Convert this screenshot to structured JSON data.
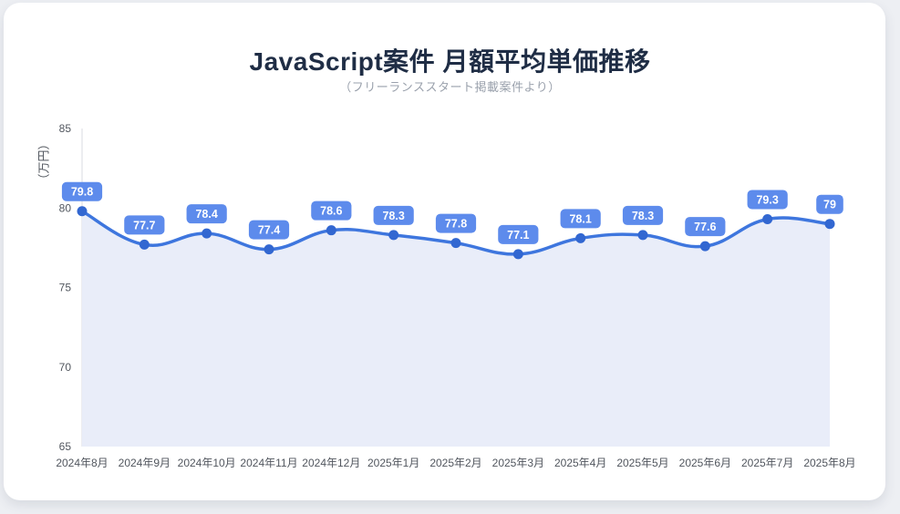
{
  "page": {
    "background_color": "#EDEFF3",
    "card_color": "#ffffff"
  },
  "chart_data": {
    "type": "line",
    "title": "JavaScript案件 月額平均単価推移",
    "subtitle": "（フリーランススタート掲載案件より）",
    "xlabel": "",
    "ylabel": "（万円）",
    "categories": [
      "2024年8月",
      "2024年9月",
      "2024年10月",
      "2024年11月",
      "2024年12月",
      "2025年1月",
      "2025年2月",
      "2025年3月",
      "2025年4月",
      "2025年5月",
      "2025年6月",
      "2025年7月",
      "2025年8月"
    ],
    "values": [
      79.8,
      77.7,
      78.4,
      77.4,
      78.6,
      78.3,
      77.8,
      77.1,
      78.1,
      78.3,
      77.6,
      79.3,
      79
    ],
    "data_labels": [
      "79.8",
      "77.7",
      "78.4",
      "77.4",
      "78.6",
      "78.3",
      "77.8",
      "77.1",
      "78.1",
      "78.3",
      "77.6",
      "79.3",
      "79"
    ],
    "ylim": [
      65,
      85
    ],
    "yticks": [
      85,
      80,
      75,
      70,
      65
    ],
    "grid": false,
    "legend": "none",
    "area_fill": true,
    "smooth": true,
    "colors": {
      "line": "#3E76DE",
      "point": "#3267D1",
      "badge": "#5D8BEC",
      "badge_text": "#FFFFFF",
      "area": "#E9EDF9",
      "axis_line": "#D8DBE2",
      "tick_text": "#51565E",
      "title": "#1F2D45",
      "subtitle": "#9AA1AC"
    }
  }
}
